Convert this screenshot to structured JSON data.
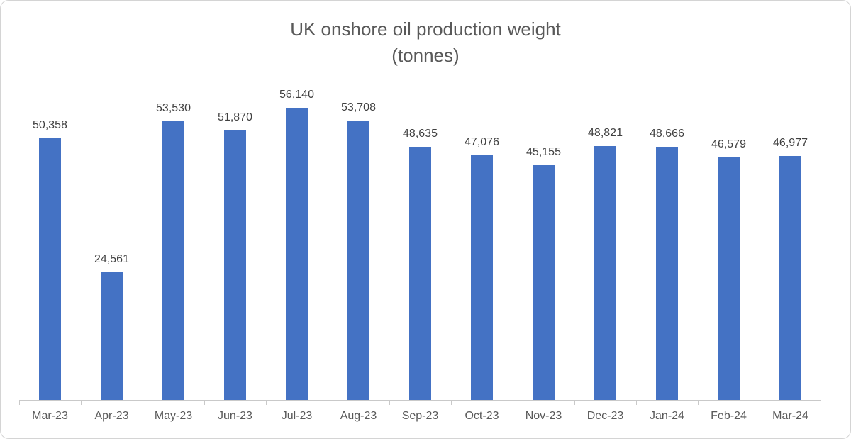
{
  "chart_data": {
    "type": "bar",
    "title": "UK onshore oil production weight",
    "subtitle": "(tonnes)",
    "categories": [
      "Mar-23",
      "Apr-23",
      "May-23",
      "Jun-23",
      "Jul-23",
      "Aug-23",
      "Sep-23",
      "Oct-23",
      "Nov-23",
      "Dec-23",
      "Jan-24",
      "Feb-24",
      "Mar-24"
    ],
    "values": [
      50358,
      24561,
      53530,
      51870,
      56140,
      53708,
      48635,
      47076,
      45155,
      48821,
      48666,
      46579,
      46977
    ],
    "data_labels": [
      "50,358",
      "24,561",
      "53,530",
      "51,870",
      "56,140",
      "53,708",
      "48,635",
      "47,076",
      "45,155",
      "48,821",
      "48,666",
      "46,579",
      "46,977"
    ],
    "xlabel": "",
    "ylabel": "",
    "ylim": [
      0,
      60000
    ],
    "grid": false,
    "legend": false,
    "bar_color": "#4472C4",
    "title_color": "#595959",
    "label_color": "#404040",
    "axis_color": "#c9c9c9"
  }
}
